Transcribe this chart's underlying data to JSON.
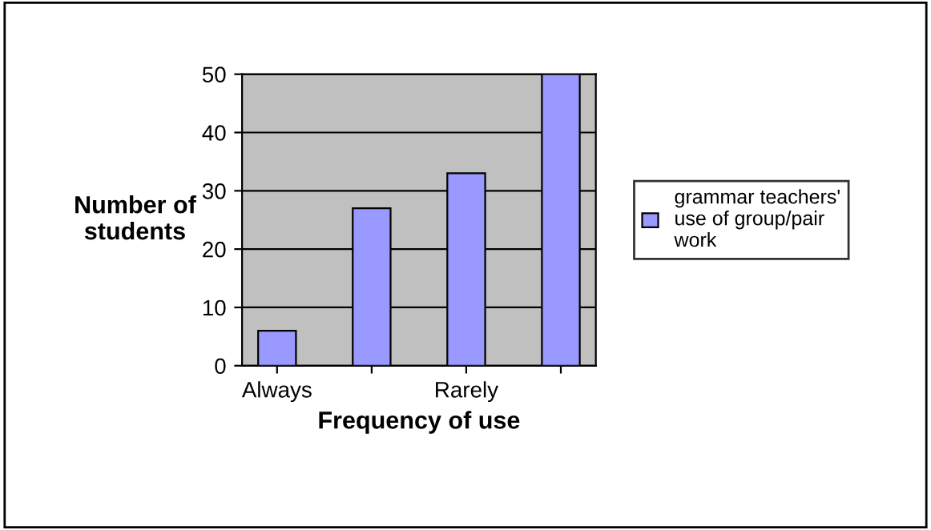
{
  "chart_data": {
    "type": "bar",
    "xlabel": "Frequency of use",
    "ylabel": "Number of\nstudents",
    "categories": [
      "Always",
      null,
      "Rarely",
      null
    ],
    "series": [
      {
        "name": "grammar teachers'\nuse of group/pair\nwork",
        "color": "#9999ff",
        "values": [
          6,
          27,
          33,
          50
        ]
      }
    ],
    "ylim": [
      0,
      50
    ],
    "yticks": [
      0,
      10,
      20,
      30,
      40,
      50
    ],
    "grid": "y",
    "legend": "right"
  }
}
